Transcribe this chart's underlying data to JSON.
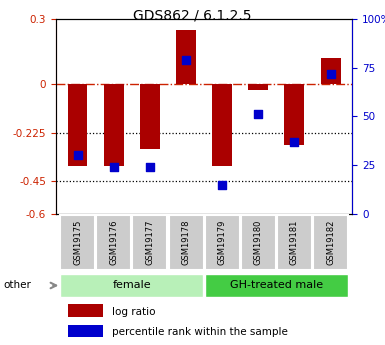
{
  "title": "GDS862 / 6.1.2.5",
  "samples": [
    "GSM19175",
    "GSM19176",
    "GSM19177",
    "GSM19178",
    "GSM19179",
    "GSM19180",
    "GSM19181",
    "GSM19182"
  ],
  "log_ratio": [
    -0.38,
    -0.38,
    -0.3,
    0.25,
    -0.38,
    -0.03,
    -0.28,
    0.12
  ],
  "percentile_rank": [
    30,
    24,
    24,
    79,
    15,
    51,
    37,
    72
  ],
  "groups": [
    {
      "label": "female",
      "start": 0,
      "end": 4,
      "color": "#b2f0b2"
    },
    {
      "label": "GH-treated male",
      "start": 4,
      "end": 8,
      "color": "#44cc44"
    }
  ],
  "ylim_left": [
    -0.6,
    0.3
  ],
  "ylim_right": [
    0,
    100
  ],
  "yticks_left": [
    0.3,
    0.0,
    -0.225,
    -0.45,
    -0.6
  ],
  "ytick_labels_left": [
    "0.3",
    "0",
    "-0.225",
    "-0.45",
    "-0.6"
  ],
  "yticks_right": [
    100,
    75,
    50,
    25,
    0
  ],
  "ytick_labels_right": [
    "100%",
    "75",
    "50",
    "25",
    "0"
  ],
  "bar_color": "#aa0000",
  "dot_color": "#0000cc",
  "bar_width": 0.55,
  "dot_size": 28,
  "left_tick_color": "#cc2200",
  "right_tick_color": "#0000cc",
  "zero_line_color": "#cc2200",
  "grid_line_color": "#000000",
  "legend_log_ratio": "log ratio",
  "legend_percentile": "percentile rank within the sample",
  "other_label": "other",
  "sample_box_color": "#cccccc",
  "female_color": "#b8f0b8",
  "gh_color": "#44cc44"
}
